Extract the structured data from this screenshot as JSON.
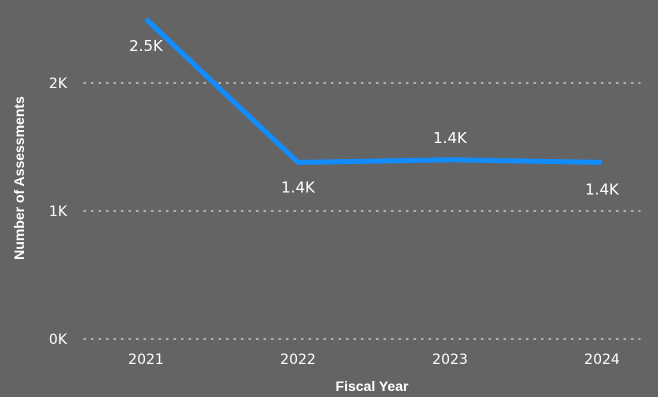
{
  "chart_data": {
    "type": "line",
    "title": "",
    "xlabel": "Fiscal Year",
    "ylabel": "Number of Assessments",
    "categories": [
      "2021",
      "2022",
      "2023",
      "2024"
    ],
    "series": [
      {
        "values": [
          2500,
          1380,
          1400,
          1380
        ],
        "labels": [
          "2.5K",
          "1.4K",
          "1.4K",
          "1.4K"
        ],
        "color": "#118DFF"
      }
    ],
    "y_ticks": [
      {
        "value": 0,
        "label": "0K"
      },
      {
        "value": 1000,
        "label": "1K"
      },
      {
        "value": 2000,
        "label": "2K"
      }
    ],
    "ylim": [
      0,
      2600
    ],
    "grid": true,
    "legend": "none",
    "colors": {
      "background": "#646464",
      "text": "#FFFFFF",
      "grid": "#C8C8C8"
    }
  }
}
